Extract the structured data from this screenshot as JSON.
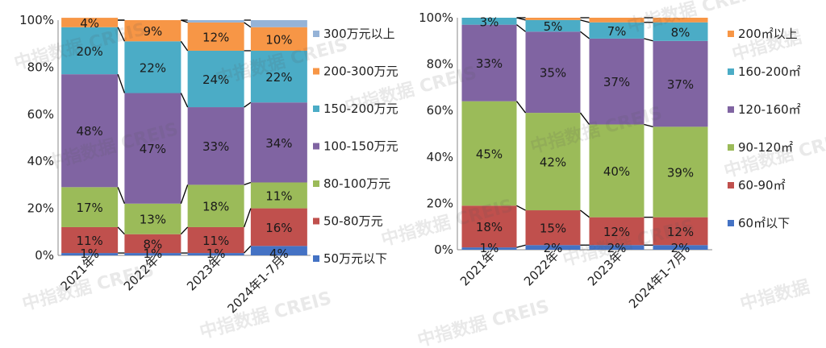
{
  "chart_data": [
    {
      "type": "bar",
      "stacked": true,
      "categories": [
        "2021年",
        "2022年",
        "2023年",
        "2024年1-7月"
      ],
      "ylim": [
        0,
        100
      ],
      "y_ticks": [
        "0%",
        "20%",
        "40%",
        "60%",
        "80%",
        "100%"
      ],
      "legend_position": "right",
      "series": [
        {
          "name": "50万元以下",
          "color": "#4472C4",
          "values": [
            1,
            1,
            1,
            4
          ],
          "labels": [
            "1%",
            "1%",
            "1%",
            "4%"
          ]
        },
        {
          "name": "50-80万元",
          "color": "#C0504D",
          "values": [
            11,
            8,
            11,
            16
          ],
          "labels": [
            "11%",
            "8%",
            "11%",
            "16%"
          ]
        },
        {
          "name": "80-100万元",
          "color": "#9BBB59",
          "values": [
            17,
            13,
            18,
            11
          ],
          "labels": [
            "17%",
            "13%",
            "18%",
            "11%"
          ]
        },
        {
          "name": "100-150万元",
          "color": "#8064A2",
          "values": [
            48,
            47,
            33,
            34
          ],
          "labels": [
            "48%",
            "47%",
            "33%",
            "34%"
          ]
        },
        {
          "name": "150-200万元",
          "color": "#4BACC6",
          "values": [
            20,
            22,
            24,
            22
          ],
          "labels": [
            "20%",
            "22%",
            "24%",
            "22%"
          ]
        },
        {
          "name": "200-300万元",
          "color": "#F79646",
          "values": [
            4,
            9,
            12,
            10
          ],
          "labels": [
            "4%",
            "9%",
            "12%",
            "10%"
          ]
        },
        {
          "name": "300万元以上",
          "color": "#95B3D7",
          "values": [
            0,
            0,
            1,
            3
          ],
          "labels": [
            "",
            "",
            "",
            ""
          ]
        }
      ]
    },
    {
      "type": "bar",
      "stacked": true,
      "categories": [
        "2021年",
        "2022年",
        "2023年",
        "2024年1-7月"
      ],
      "ylim": [
        0,
        100
      ],
      "y_ticks": [
        "0%",
        "20%",
        "40%",
        "60%",
        "80%",
        "100%"
      ],
      "legend_position": "right",
      "series": [
        {
          "name": "60㎡以下",
          "color": "#4472C4",
          "values": [
            1,
            2,
            2,
            2
          ],
          "labels": [
            "1%",
            "2%",
            "2%",
            "2%"
          ]
        },
        {
          "name": "60-90㎡",
          "color": "#C0504D",
          "values": [
            18,
            15,
            12,
            12
          ],
          "labels": [
            "18%",
            "15%",
            "12%",
            "12%"
          ]
        },
        {
          "name": "90-120㎡",
          "color": "#9BBB59",
          "values": [
            45,
            42,
            40,
            39
          ],
          "labels": [
            "45%",
            "42%",
            "40%",
            "39%"
          ]
        },
        {
          "name": "120-160㎡",
          "color": "#8064A2",
          "values": [
            33,
            35,
            37,
            37
          ],
          "labels": [
            "33%",
            "35%",
            "37%",
            "37%"
          ]
        },
        {
          "name": "160-200㎡",
          "color": "#4BACC6",
          "values": [
            3,
            5,
            7,
            8
          ],
          "labels": [
            "3%",
            "5%",
            "7%",
            "8%"
          ]
        },
        {
          "name": "200㎡以上",
          "color": "#F79646",
          "values": [
            0,
            1,
            2,
            2
          ],
          "labels": [
            "",
            "",
            "",
            ""
          ]
        }
      ]
    }
  ],
  "watermarks": [
    "中指数据 CREIS",
    "中指数据"
  ]
}
